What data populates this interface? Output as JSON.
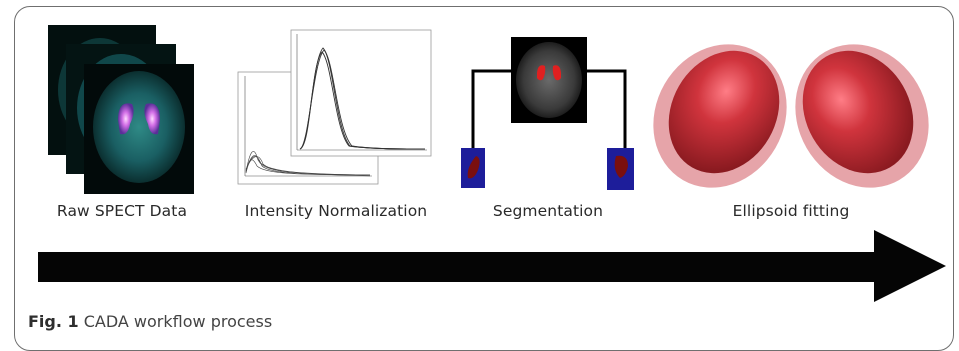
{
  "stages": [
    {
      "label": "Raw SPECT Data"
    },
    {
      "label": "Intensity Normalization"
    },
    {
      "label": "Segmentation"
    },
    {
      "label": "Ellipsoid fitting"
    }
  ],
  "caption": {
    "fig_label": "Fig. 1",
    "text": " CADA workflow process"
  },
  "colors": {
    "spect_bg": "#0d3a3a",
    "spect_hot": "#b84fd0",
    "ellipsoid": "#c8323a",
    "segment_box": "#1f1fa0",
    "arrow": "#050505"
  }
}
